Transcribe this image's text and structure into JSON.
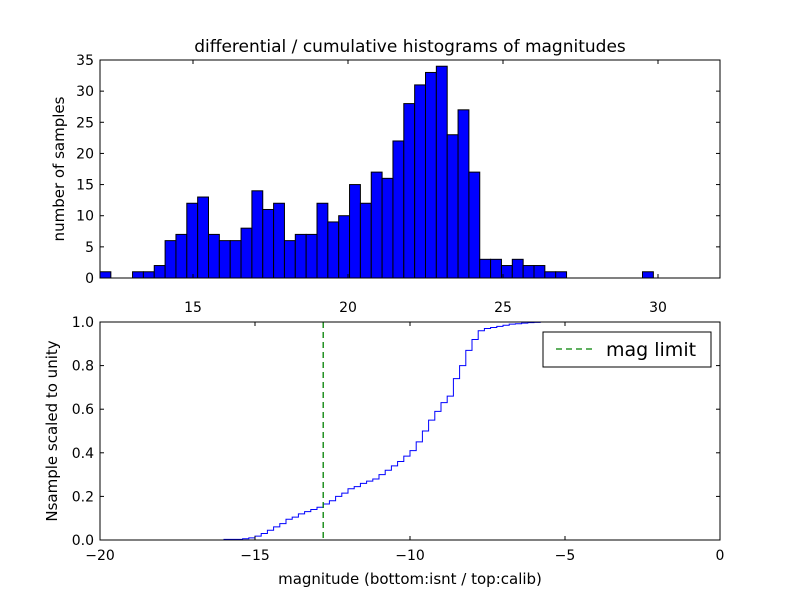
{
  "chart_data": [
    {
      "type": "bar",
      "title": "differential / cumulative histograms of magnitudes",
      "xlabel": "",
      "ylabel": "number of samples",
      "xlim": [
        12,
        32
      ],
      "ylim": [
        0,
        35
      ],
      "xticks": [
        "15",
        "20",
        "25",
        "30"
      ],
      "yticks": [
        "0",
        "5",
        "10",
        "15",
        "20",
        "25",
        "30",
        "35"
      ],
      "bar_color": "#0000ff",
      "bin_start": 12.0,
      "bin_width": 0.35,
      "counts": [
        1,
        0,
        0,
        1,
        1,
        2,
        6,
        7,
        12,
        13,
        7,
        6,
        6,
        8,
        14,
        11,
        12,
        6,
        7,
        7,
        12,
        9,
        10,
        15,
        12,
        17,
        16,
        22,
        28,
        31,
        33,
        34,
        23,
        27,
        17,
        3,
        3,
        2,
        3,
        2,
        2,
        1,
        1,
        0,
        0,
        0,
        0,
        0,
        0,
        0,
        1,
        0,
        0,
        0,
        0
      ]
    },
    {
      "type": "line",
      "xlabel": "magnitude (bottom:isnt / top:calib)",
      "ylabel": "Nsample scaled to unity",
      "xlim": [
        -20,
        0
      ],
      "ylim": [
        0,
        1
      ],
      "xticks": [
        "−20",
        "−15",
        "−10",
        "−5",
        "0"
      ],
      "yticks": [
        "0.0",
        "0.2",
        "0.4",
        "0.6",
        "0.8",
        "1.0"
      ],
      "line_color": "#0000ff",
      "step_x": [
        -20.0,
        -16.0,
        -15.4,
        -15.2,
        -15.0,
        -14.8,
        -14.6,
        -14.4,
        -14.2,
        -14.0,
        -13.8,
        -13.6,
        -13.4,
        -13.2,
        -13.0,
        -12.8,
        -12.6,
        -12.4,
        -12.2,
        -12.0,
        -11.8,
        -11.6,
        -11.4,
        -11.2,
        -11.0,
        -10.8,
        -10.6,
        -10.4,
        -10.2,
        -10.0,
        -9.8,
        -9.6,
        -9.4,
        -9.2,
        -9.0,
        -8.8,
        -8.6,
        -8.4,
        -8.2,
        -8.0,
        -7.8,
        -7.6,
        -7.4,
        -7.2,
        -7.0,
        -6.8,
        -6.6,
        -6.4,
        -6.2,
        -6.0,
        -5.8,
        -5.6,
        0.0
      ],
      "step_y": [
        0.0,
        0.003,
        0.006,
        0.01,
        0.018,
        0.03,
        0.045,
        0.06,
        0.075,
        0.095,
        0.105,
        0.12,
        0.13,
        0.14,
        0.15,
        0.165,
        0.18,
        0.2,
        0.215,
        0.235,
        0.245,
        0.26,
        0.27,
        0.28,
        0.3,
        0.32,
        0.34,
        0.36,
        0.385,
        0.41,
        0.45,
        0.5,
        0.55,
        0.59,
        0.63,
        0.66,
        0.74,
        0.8,
        0.87,
        0.92,
        0.96,
        0.97,
        0.975,
        0.98,
        0.985,
        0.99,
        0.992,
        0.995,
        0.997,
        0.998,
        1.0,
        1.0,
        1.0
      ],
      "mag_limit": -12.8,
      "mag_limit_color": "#008000",
      "legend": [
        {
          "label": "mag limit",
          "style": "dashed",
          "color": "#008000"
        }
      ],
      "legend_position": "top-right"
    }
  ]
}
